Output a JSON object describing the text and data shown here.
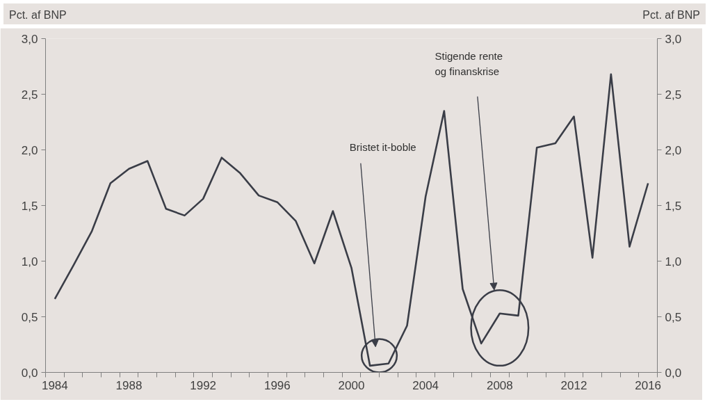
{
  "chart_data": {
    "type": "line",
    "categories": [
      "1984",
      null,
      null,
      null,
      "1988",
      null,
      null,
      null,
      "1992",
      null,
      null,
      null,
      "1996",
      null,
      null,
      null,
      "2000",
      null,
      null,
      null,
      "2004",
      null,
      null,
      null,
      "2008",
      null,
      null,
      null,
      "2012",
      null,
      null,
      null,
      "2016"
    ],
    "series": [
      {
        "color": "#3a3d47",
        "values": [
          0.66,
          0.96,
          1.27,
          1.7,
          1.83,
          1.9,
          1.47,
          1.41,
          1.56,
          1.93,
          1.79,
          1.59,
          1.53,
          1.36,
          0.98,
          1.45,
          0.94,
          0.06,
          0.08,
          0.42,
          1.58,
          2.35,
          0.75,
          0.26,
          0.53,
          0.51,
          2.02,
          2.06,
          2.3,
          1.03,
          2.68,
          1.13,
          1.7
        ]
      }
    ],
    "ylabel": "Pct. af BNP",
    "y2label": "Pct. af BNP",
    "ylim": [
      0,
      3
    ],
    "yticks": [
      {
        "value": 0,
        "label": "0,0"
      },
      {
        "value": 0.5,
        "label": "0,5"
      },
      {
        "value": 1,
        "label": "1,0"
      },
      {
        "value": 1.5,
        "label": "1,5"
      },
      {
        "value": 2,
        "label": "2,0"
      },
      {
        "value": 2.5,
        "label": "2,5"
      },
      {
        "value": 3,
        "label": "3,0"
      }
    ],
    "y2lim": [
      0,
      3
    ],
    "y2ticks": [
      {
        "value": 0,
        "label": "0,0"
      },
      {
        "value": 0.5,
        "label": "0,5"
      },
      {
        "value": 1,
        "label": "1,0"
      },
      {
        "value": 1.5,
        "label": "1,5"
      },
      {
        "value": 2,
        "label": "2,0"
      },
      {
        "value": 2.5,
        "label": "2,5"
      },
      {
        "value": 3,
        "label": "3,0"
      }
    ],
    "annotations": [
      "Bristet it-boble",
      "Stigende rente\nog finanskrise"
    ],
    "grid": false,
    "marker": "none",
    "line_style": "solid"
  }
}
